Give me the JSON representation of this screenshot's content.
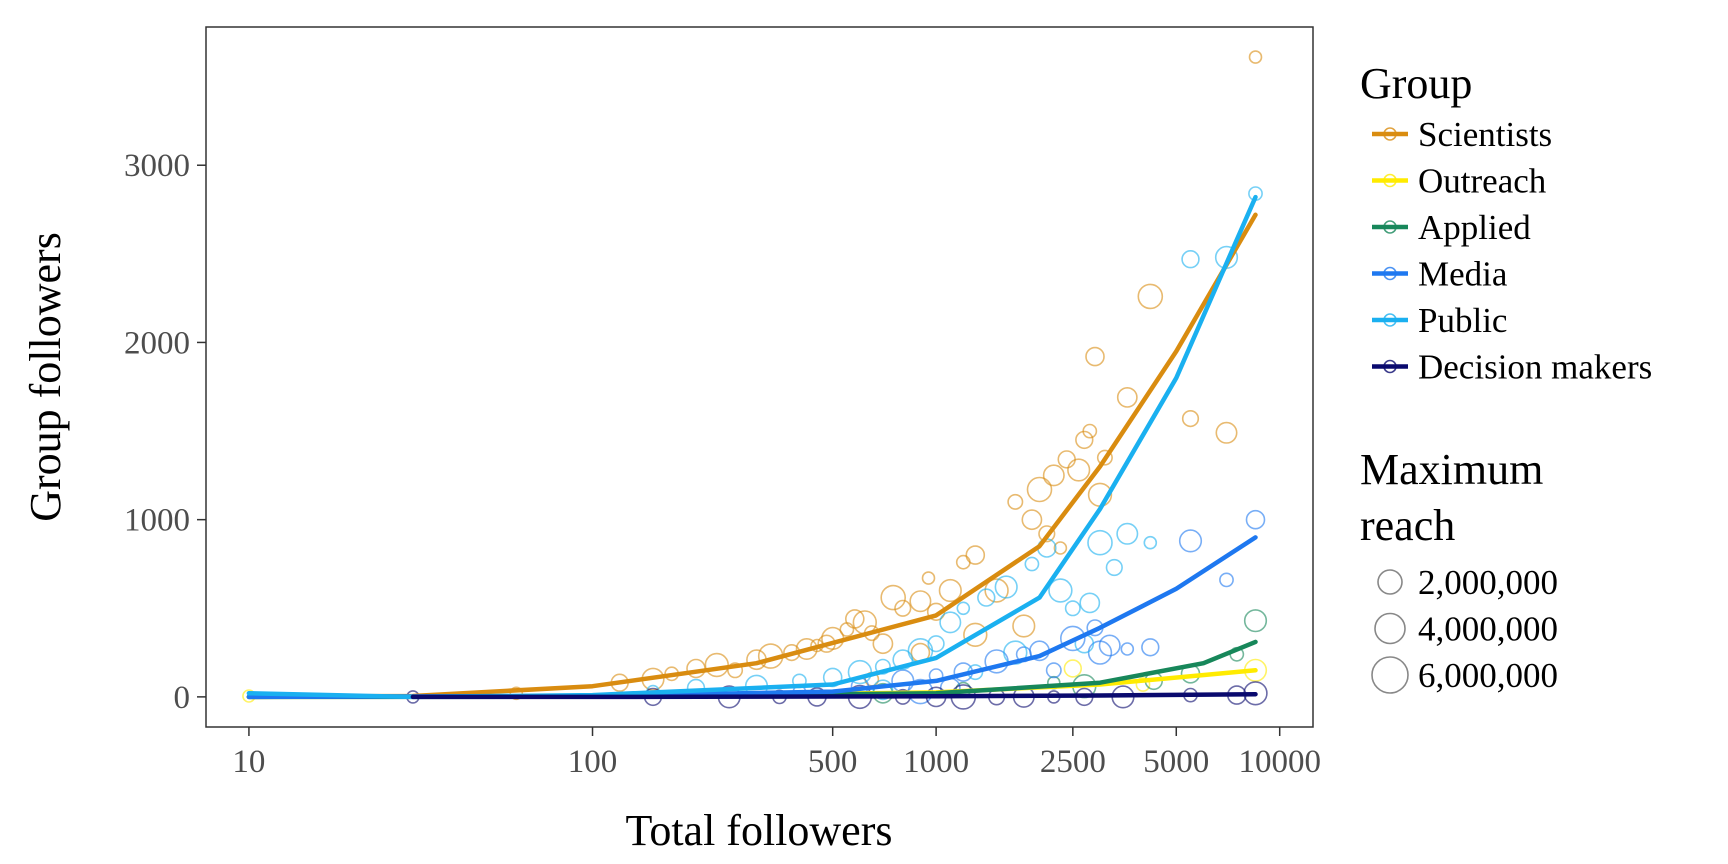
{
  "chart_data": {
    "type": "scatter",
    "xlabel": "Total followers",
    "ylabel": "Group followers",
    "x_scale": "log",
    "xlim": [
      7.5,
      12500
    ],
    "ylim": [
      -170,
      3780
    ],
    "x_ticks": [
      10,
      100,
      500,
      1000,
      2500,
      5000,
      10000
    ],
    "x_tick_labels": [
      "10",
      "100",
      "500",
      "1000",
      "2500",
      "5000",
      "10000"
    ],
    "y_ticks": [
      0,
      1000,
      2000,
      3000
    ],
    "y_tick_labels": [
      "0",
      "1000",
      "2000",
      "3000"
    ],
    "grid": false,
    "legend": {
      "placement": "right",
      "group_title": "Group",
      "size_title_lines": [
        "Maximum",
        "reach"
      ],
      "size_entries": [
        {
          "label": "2,000,000",
          "value": 2000000
        },
        {
          "label": "4,000,000",
          "value": 4000000
        },
        {
          "label": "6,000,000",
          "value": 6000000
        }
      ]
    },
    "series": [
      {
        "name": "Scientists",
        "color": "#D98C10",
        "curve": {
          "x": [
            10,
            30,
            100,
            300,
            1000,
            2000,
            3000,
            5000,
            8500
          ],
          "y": [
            0,
            5,
            60,
            190,
            460,
            850,
            1300,
            1950,
            2720
          ]
        },
        "points": [
          [
            60,
            20
          ],
          [
            120,
            80
          ],
          [
            150,
            100
          ],
          [
            170,
            130
          ],
          [
            200,
            160
          ],
          [
            230,
            180
          ],
          [
            260,
            150
          ],
          [
            300,
            210
          ],
          [
            330,
            230
          ],
          [
            380,
            250
          ],
          [
            420,
            270
          ],
          [
            450,
            290
          ],
          [
            480,
            300
          ],
          [
            500,
            330
          ],
          [
            550,
            380
          ],
          [
            580,
            440
          ],
          [
            620,
            420
          ],
          [
            650,
            360
          ],
          [
            700,
            300
          ],
          [
            750,
            560
          ],
          [
            800,
            500
          ],
          [
            900,
            540
          ],
          [
            950,
            670
          ],
          [
            1000,
            480
          ],
          [
            1100,
            600
          ],
          [
            1200,
            760
          ],
          [
            1300,
            800
          ],
          [
            1500,
            600
          ],
          [
            1700,
            1100
          ],
          [
            1900,
            1000
          ],
          [
            2000,
            1170
          ],
          [
            2100,
            920
          ],
          [
            2200,
            1250
          ],
          [
            2300,
            840
          ],
          [
            2400,
            1340
          ],
          [
            2600,
            1280
          ],
          [
            2800,
            1500
          ],
          [
            2900,
            1920
          ],
          [
            3000,
            1140
          ],
          [
            3100,
            1350
          ],
          [
            3600,
            1690
          ],
          [
            4200,
            2260
          ],
          [
            5500,
            1570
          ],
          [
            7000,
            1490
          ],
          [
            8500,
            3610
          ],
          [
            2700,
            1450
          ],
          [
            1800,
            400
          ],
          [
            650,
            100
          ],
          [
            900,
            250
          ],
          [
            1300,
            350
          ]
        ]
      },
      {
        "name": "Outreach",
        "color": "#FFEB00",
        "curve": {
          "x": [
            10,
            100,
            1000,
            3000,
            8500
          ],
          "y": [
            0,
            2,
            25,
            70,
            150
          ]
        },
        "points": [
          [
            10,
            5
          ],
          [
            2500,
            160
          ],
          [
            8500,
            150
          ],
          [
            4000,
            70
          ]
        ]
      },
      {
        "name": "Applied",
        "color": "#17875A",
        "curve": {
          "x": [
            10,
            100,
            1000,
            3000,
            6000,
            8500
          ],
          "y": [
            0,
            1,
            20,
            80,
            190,
            310
          ]
        },
        "points": [
          [
            2200,
            80
          ],
          [
            4300,
            90
          ],
          [
            8500,
            430
          ],
          [
            7500,
            240
          ],
          [
            5500,
            130
          ],
          [
            2700,
            60
          ],
          [
            1200,
            40
          ],
          [
            700,
            20
          ]
        ]
      },
      {
        "name": "Media",
        "color": "#1E78F0",
        "curve": {
          "x": [
            10,
            100,
            500,
            1000,
            2000,
            3000,
            5000,
            8500
          ],
          "y": [
            0,
            5,
            30,
            90,
            230,
            390,
            610,
            900
          ]
        },
        "points": [
          [
            400,
            30
          ],
          [
            600,
            60
          ],
          [
            800,
            90
          ],
          [
            1000,
            120
          ],
          [
            1200,
            140
          ],
          [
            1500,
            200
          ],
          [
            1800,
            240
          ],
          [
            2000,
            260
          ],
          [
            2500,
            330
          ],
          [
            2900,
            390
          ],
          [
            3200,
            290
          ],
          [
            3600,
            270
          ],
          [
            4200,
            280
          ],
          [
            5500,
            880
          ],
          [
            7000,
            660
          ],
          [
            8500,
            1000
          ],
          [
            3000,
            250
          ],
          [
            2200,
            150
          ],
          [
            1100,
            50
          ],
          [
            900,
            30
          ]
        ]
      },
      {
        "name": "Public",
        "color": "#1AB0F0",
        "curve": {
          "x": [
            10,
            30,
            100,
            500,
            1000,
            2000,
            3000,
            5000,
            8500
          ],
          "y": [
            20,
            0,
            10,
            70,
            220,
            560,
            1060,
            1800,
            2820
          ]
        },
        "points": [
          [
            150,
            30
          ],
          [
            200,
            50
          ],
          [
            300,
            60
          ],
          [
            400,
            90
          ],
          [
            500,
            110
          ],
          [
            600,
            140
          ],
          [
            700,
            170
          ],
          [
            800,
            210
          ],
          [
            900,
            260
          ],
          [
            1000,
            300
          ],
          [
            1100,
            420
          ],
          [
            1200,
            500
          ],
          [
            1400,
            560
          ],
          [
            1600,
            620
          ],
          [
            1900,
            750
          ],
          [
            2100,
            840
          ],
          [
            2300,
            600
          ],
          [
            2500,
            500
          ],
          [
            2800,
            530
          ],
          [
            3000,
            870
          ],
          [
            3300,
            730
          ],
          [
            3600,
            920
          ],
          [
            4200,
            870
          ],
          [
            5500,
            2470
          ],
          [
            7000,
            2480
          ],
          [
            8500,
            2840
          ],
          [
            2700,
            300
          ],
          [
            1700,
            250
          ],
          [
            1300,
            140
          ],
          [
            700,
            40
          ]
        ]
      },
      {
        "name": "Decision makers",
        "color": "#0A0A6E",
        "curve": {
          "x": [
            30,
            100,
            1000,
            3000,
            8500
          ],
          "y": [
            0,
            0,
            3,
            8,
            15
          ]
        },
        "points": [
          [
            30,
            0
          ],
          [
            150,
            0
          ],
          [
            250,
            0
          ],
          [
            350,
            0
          ],
          [
            450,
            0
          ],
          [
            600,
            0
          ],
          [
            800,
            0
          ],
          [
            1000,
            0
          ],
          [
            1200,
            0
          ],
          [
            1500,
            0
          ],
          [
            1800,
            0
          ],
          [
            2200,
            0
          ],
          [
            2700,
            0
          ],
          [
            3500,
            0
          ],
          [
            5500,
            10
          ],
          [
            7500,
            10
          ],
          [
            8500,
            20
          ]
        ]
      }
    ]
  }
}
